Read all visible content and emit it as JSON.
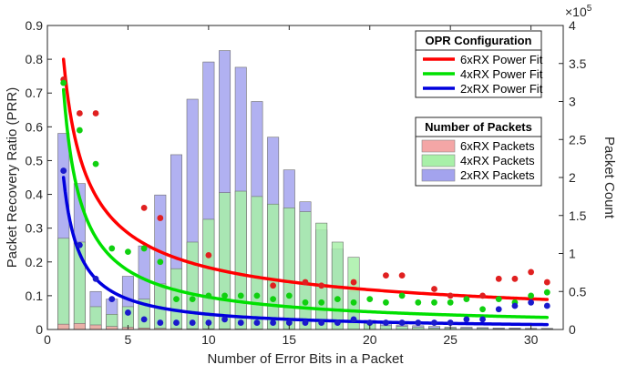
{
  "chart_data": {
    "type": "bar+line",
    "xlabel": "Number of Error Bits in a Packet",
    "ylabel_left": "Packet Recovery Ratio (PRR)",
    "ylabel_right": "Packet Count",
    "right_axis_exponent": "×10",
    "right_axis_exponent_power": "5",
    "xlim": [
      0,
      32
    ],
    "ylim_left": [
      0,
      0.9
    ],
    "ylim_right": [
      0,
      400000
    ],
    "x_ticks": [
      0,
      5,
      10,
      15,
      20,
      25,
      30
    ],
    "y_left_ticks": [
      0,
      0.1,
      0.2,
      0.3,
      0.4,
      0.5,
      0.6,
      0.7,
      0.8,
      0.9
    ],
    "y_right_ticks": [
      0,
      0.5,
      1,
      1.5,
      2,
      2.5,
      3,
      3.5,
      4
    ],
    "x_tick_labels": [
      "0",
      "5",
      "10",
      "15",
      "20",
      "25",
      "30"
    ],
    "y_left_tick_labels": [
      "0",
      "0.1",
      "0.2",
      "0.3",
      "0.4",
      "0.5",
      "0.6",
      "0.7",
      "0.8",
      "0.9"
    ],
    "y_right_tick_labels": [
      "0",
      "0.5",
      "1",
      "1.5",
      "2",
      "2.5",
      "3",
      "3.5",
      "4"
    ],
    "bar_categories": [
      1,
      2,
      3,
      4,
      5,
      6,
      7,
      8,
      9,
      10,
      11,
      12,
      13,
      14,
      15,
      16,
      17,
      18,
      19,
      20,
      21,
      22,
      23,
      24,
      25,
      26,
      27,
      28,
      29,
      30,
      31
    ],
    "bar_series": [
      {
        "name": "6xRX Packets",
        "color": "#f4a6a6",
        "values": [
          7000,
          8000,
          6000,
          4000,
          3000,
          2000,
          1500,
          1200,
          1000,
          900,
          800,
          700,
          600,
          500,
          400,
          300,
          250,
          200,
          150,
          100,
          80,
          60,
          50,
          40,
          30,
          30,
          20,
          20,
          15,
          10,
          10
        ]
      },
      {
        "name": "4xRX Packets",
        "color": "#a8f0a8",
        "values": [
          120000,
          115000,
          30000,
          20000,
          30000,
          40000,
          60000,
          80000,
          115000,
          145000,
          180000,
          182000,
          175000,
          165000,
          160000,
          155000,
          140000,
          115000,
          95000,
          8000,
          5000,
          4000,
          3000,
          2000,
          2000,
          1500,
          1500,
          1000,
          1000,
          1000,
          800
        ]
      },
      {
        "name": "2xRX Packets",
        "color": "#a3a3ee",
        "values": [
          258000,
          192000,
          50000,
          40000,
          70000,
          110000,
          177000,
          230000,
          303000,
          352000,
          367000,
          345000,
          300000,
          253000,
          210000,
          168000,
          131000,
          106000,
          50000,
          12000,
          8000,
          6000,
          5000,
          4000,
          3000,
          3000,
          2500,
          2000,
          2000,
          1500,
          1500
        ]
      }
    ],
    "fit_series": [
      {
        "name": "6xRX Power Fit",
        "color": "#ff0000",
        "a": 0.8,
        "b": -0.64
      },
      {
        "name": "4xRX Power Fit",
        "color": "#00e000",
        "a": 0.71,
        "b": -0.87
      },
      {
        "name": "2xRX Power Fit",
        "color": "#0000dd",
        "a": 0.45,
        "b": -1.0
      }
    ],
    "fit_x_range": [
      1,
      31
    ],
    "scatter_series": [
      {
        "name": "6xRX",
        "color": "#e02020",
        "x": [
          1,
          2,
          3,
          6,
          7,
          10,
          14,
          16,
          17,
          19,
          21,
          22,
          24,
          25,
          27,
          28,
          29,
          30,
          31
        ],
        "y": [
          0.74,
          0.64,
          0.64,
          0.36,
          0.33,
          0.22,
          0.13,
          0.14,
          0.13,
          0.14,
          0.16,
          0.16,
          0.12,
          0.1,
          0.1,
          0.15,
          0.15,
          0.17,
          0.14
        ]
      },
      {
        "name": "4xRX",
        "color": "#10d010",
        "x": [
          1,
          2,
          3,
          4,
          5,
          6,
          7,
          8,
          9,
          10,
          11,
          12,
          13,
          14,
          15,
          16,
          17,
          18,
          19,
          20,
          21,
          22,
          23,
          24,
          25,
          26,
          27,
          28,
          29,
          30,
          31
        ],
        "y": [
          0.73,
          0.59,
          0.49,
          0.24,
          0.23,
          0.24,
          0.2,
          0.09,
          0.09,
          0.1,
          0.1,
          0.1,
          0.1,
          0.09,
          0.1,
          0.08,
          0.08,
          0.09,
          0.08,
          0.09,
          0.08,
          0.1,
          0.08,
          0.08,
          0.08,
          0.09,
          0.06,
          0.09,
          0.08,
          0.1,
          0.11
        ]
      },
      {
        "name": "2xRX",
        "color": "#1a1acc",
        "x": [
          1,
          2,
          3,
          4,
          5,
          6,
          7,
          8,
          9,
          10,
          11,
          12,
          13,
          14,
          15,
          16,
          17,
          18,
          19,
          20,
          21,
          22,
          23,
          24,
          25,
          26,
          27,
          28,
          29,
          30,
          31
        ],
        "y": [
          0.47,
          0.25,
          0.15,
          0.09,
          0.05,
          0.03,
          0.02,
          0.02,
          0.02,
          0.02,
          0.03,
          0.02,
          0.02,
          0.02,
          0.02,
          0.02,
          0.02,
          0.02,
          0.03,
          0.02,
          0.02,
          0.02,
          0.02,
          0.02,
          0.02,
          0.03,
          0.03,
          0.06,
          0.07,
          0.08,
          0.07
        ]
      }
    ],
    "legend_fits_title": "OPR Configuration",
    "legend_fits_placement": "top-right",
    "legend_bars_title": "Number of Packets",
    "legend_bars_placement": "right",
    "grid": false
  }
}
